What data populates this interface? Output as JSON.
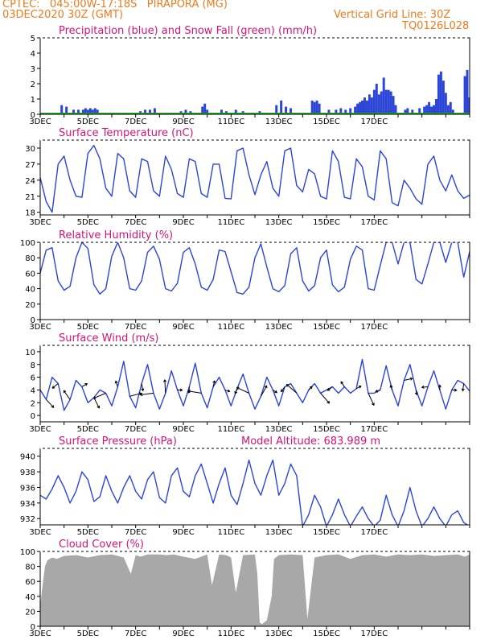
{
  "header": {
    "line1": "CPTEC:   045:00W-17:18S   PIRAPORA (MG)",
    "line2": "03DEC2020 30Z (GMT)",
    "grid_note": "Vertical Grid Line: 30Z",
    "code": "TQ0126L028"
  },
  "colors": {
    "header": "#e87c1e",
    "title": "#d0147a",
    "line": "#2b45d6",
    "snow": "#22aa22",
    "cloud": "#a8a8a8",
    "axis": "#000000"
  },
  "x_labels": [
    "3DEC",
    "5DEC",
    "7DEC",
    "9DEC",
    "11DEC",
    "13DEC",
    "15DEC",
    "17DEC"
  ],
  "chart_data": [
    {
      "type": "bar",
      "title": "Precipitation (blue) and Snow Fall (green) (mm/h)",
      "ylim": [
        0,
        5
      ],
      "yticks": [
        0,
        1,
        2,
        3,
        4,
        5
      ],
      "series": [
        {
          "name": "Precipitation",
          "x": [
            0.9,
            1.1,
            1.4,
            1.6,
            1.8,
            1.9,
            2.0,
            2.1,
            2.2,
            2.3,
            2.4,
            4.2,
            4.4,
            4.6,
            4.8,
            5.9,
            6.1,
            6.3,
            6.8,
            6.9,
            7.0,
            7.6,
            7.8,
            8.2,
            8.5,
            9.2,
            9.9,
            10.1,
            10.3,
            10.5,
            11.4,
            11.5,
            11.6,
            11.7,
            12.1,
            12.4,
            12.6,
            12.8,
            13.0,
            13.2,
            13.3,
            13.4,
            13.5,
            13.6,
            13.7,
            13.8,
            13.9,
            14.0,
            14.1,
            14.2,
            14.3,
            14.4,
            14.5,
            14.6,
            14.7,
            14.8,
            14.9,
            15.3,
            15.4,
            15.6,
            15.9,
            16.1,
            16.2,
            16.3,
            16.4,
            16.5,
            16.6,
            16.7,
            16.8,
            16.9,
            17.0,
            17.1,
            17.2,
            17.3,
            17.8,
            17.9,
            18.0
          ],
          "values": [
            0.6,
            0.5,
            0.3,
            0.3,
            0.3,
            0.4,
            0.3,
            0.4,
            0.3,
            0.4,
            0.3,
            0.2,
            0.3,
            0.3,
            0.4,
            0.2,
            0.3,
            0.2,
            0.5,
            0.7,
            0.3,
            0.3,
            0.2,
            0.3,
            0.2,
            0.2,
            0.6,
            0.9,
            0.5,
            0.4,
            0.9,
            0.8,
            0.9,
            0.7,
            0.3,
            0.3,
            0.4,
            0.3,
            0.4,
            0.5,
            0.7,
            0.8,
            0.9,
            1.1,
            0.9,
            1.3,
            1.1,
            1.6,
            2.0,
            1.3,
            1.5,
            2.4,
            1.6,
            1.6,
            1.5,
            1.2,
            0.6,
            0.3,
            0.4,
            0.3,
            0.4,
            0.5,
            0.6,
            0.8,
            0.5,
            0.6,
            1.0,
            2.6,
            2.8,
            2.2,
            1.4,
            0.6,
            0.8,
            0.3,
            2.5,
            2.9,
            1.1
          ]
        },
        {
          "name": "Snow Fall",
          "x": [
            0,
            18
          ],
          "values": [
            0,
            0
          ]
        }
      ]
    },
    {
      "type": "line",
      "title": "Surface Temperature (nC)",
      "ylim": [
        17.5,
        31.5
      ],
      "yticks": [
        18,
        21,
        24,
        27,
        30
      ],
      "x": [
        0,
        0.25,
        0.5,
        0.75,
        1,
        1.25,
        1.5,
        1.75,
        2,
        2.25,
        2.5,
        2.75,
        3,
        3.25,
        3.5,
        3.75,
        4,
        4.25,
        4.5,
        4.75,
        5,
        5.25,
        5.5,
        5.75,
        6,
        6.25,
        6.5,
        6.75,
        7,
        7.25,
        7.5,
        7.75,
        8,
        8.25,
        8.5,
        8.75,
        9,
        9.25,
        9.5,
        9.75,
        10,
        10.25,
        10.5,
        10.75,
        11,
        11.25,
        11.5,
        11.75,
        12,
        12.25,
        12.5,
        12.75,
        13,
        13.25,
        13.5,
        13.75,
        14,
        14.25,
        14.5,
        14.75,
        15,
        15.25,
        15.5,
        15.75,
        16,
        16.25,
        16.5,
        16.75,
        17,
        17.25,
        17.5,
        17.75,
        18
      ],
      "values": [
        24.5,
        20,
        18,
        27,
        28.5,
        24,
        21,
        20.8,
        29,
        30.5,
        28,
        22.5,
        21,
        29,
        28,
        22,
        20.8,
        28,
        27.5,
        22,
        21,
        28.5,
        26,
        21.5,
        20.8,
        28,
        27.5,
        21.5,
        20.8,
        27,
        27,
        20.6,
        20.5,
        29.5,
        30,
        25,
        21.3,
        25,
        27.5,
        22.5,
        21,
        29.5,
        30,
        23,
        21.8,
        26,
        25.2,
        21,
        20.5,
        29.5,
        27.5,
        20.8,
        20.5,
        28,
        26.5,
        21,
        20.3,
        29.5,
        28,
        19.8,
        19.2,
        24,
        22.5,
        20.5,
        19.5,
        27,
        28.5,
        24,
        22,
        25,
        22,
        20.6,
        21.2
      ]
    },
    {
      "type": "line",
      "title": "Relative Humidity (%)",
      "ylim": [
        0,
        100
      ],
      "yticks": [
        0,
        20,
        40,
        60,
        80,
        100
      ],
      "x": [
        0,
        0.25,
        0.5,
        0.75,
        1,
        1.25,
        1.5,
        1.75,
        2,
        2.25,
        2.5,
        2.75,
        3,
        3.25,
        3.5,
        3.75,
        4,
        4.25,
        4.5,
        4.75,
        5,
        5.25,
        5.5,
        5.75,
        6,
        6.25,
        6.5,
        6.75,
        7,
        7.25,
        7.5,
        7.75,
        8,
        8.25,
        8.5,
        8.75,
        9,
        9.25,
        9.5,
        9.75,
        10,
        10.25,
        10.5,
        10.75,
        11,
        11.25,
        11.5,
        11.75,
        12,
        12.25,
        12.5,
        12.75,
        13,
        13.25,
        13.5,
        13.75,
        14,
        14.25,
        14.5,
        14.75,
        15,
        15.25,
        15.5,
        15.75,
        16,
        16.25,
        16.5,
        16.75,
        17,
        17.25,
        17.5,
        17.75,
        18
      ],
      "values": [
        60,
        90,
        93,
        50,
        38,
        43,
        80,
        100,
        92,
        45,
        33,
        40,
        82,
        100,
        80,
        40,
        38,
        50,
        87,
        95,
        78,
        40,
        37,
        47,
        87,
        93,
        72,
        42,
        38,
        52,
        90,
        88,
        62,
        35,
        33,
        42,
        80,
        98,
        68,
        40,
        36,
        44,
        85,
        93,
        50,
        37,
        44,
        80,
        90,
        45,
        36,
        42,
        78,
        95,
        90,
        40,
        38,
        70,
        100,
        100,
        72,
        100,
        100,
        52,
        46,
        72,
        100,
        100,
        74,
        100,
        100,
        55,
        88
      ]
    },
    {
      "type": "line",
      "title": "Surface Wind (m/s)",
      "ylim": [
        -1,
        11
      ],
      "yticks": [
        0,
        2,
        4,
        6,
        8,
        10
      ],
      "x": [
        0,
        0.25,
        0.5,
        0.75,
        1,
        1.25,
        1.5,
        1.75,
        2,
        2.25,
        2.5,
        2.75,
        3,
        3.25,
        3.5,
        3.75,
        4,
        4.25,
        4.5,
        4.75,
        5,
        5.25,
        5.5,
        5.75,
        6,
        6.25,
        6.5,
        6.75,
        7,
        7.25,
        7.5,
        7.75,
        8,
        8.25,
        8.5,
        8.75,
        9,
        9.25,
        9.5,
        9.75,
        10,
        10.25,
        10.5,
        10.75,
        11,
        11.25,
        11.5,
        11.75,
        12,
        12.25,
        12.5,
        12.75,
        13,
        13.25,
        13.5,
        13.75,
        14,
        14.25,
        14.5,
        14.75,
        15,
        15.25,
        15.5,
        15.75,
        16,
        16.25,
        16.5,
        16.75,
        17,
        17.25,
        17.5,
        17.75,
        18
      ],
      "values": [
        4,
        2.5,
        6,
        5,
        0.8,
        2.5,
        5.5,
        4.5,
        2,
        2.8,
        4,
        3.5,
        1.5,
        4.5,
        8.5,
        3,
        1.2,
        5,
        8,
        3.5,
        1,
        3.5,
        7,
        4,
        1.5,
        4.5,
        8.2,
        3.5,
        1.2,
        4.5,
        6,
        4,
        1.5,
        4.2,
        6.5,
        3.5,
        1,
        3,
        6,
        4,
        1.5,
        4.5,
        5,
        3.5,
        2,
        4,
        5,
        3.5,
        4,
        4.5,
        3.5,
        4.5,
        3.5,
        4.2,
        8.8,
        3.5,
        3.5,
        4,
        7.8,
        4,
        1.5,
        5.5,
        8,
        4,
        1.5,
        4.5,
        7,
        4,
        1,
        4,
        5.5,
        5,
        3.8
      ]
    },
    {
      "type": "line",
      "title": "Surface Pressure (hPa)",
      "annotation": "Model Altitude: 683.989 m",
      "ylim": [
        931.2,
        941
      ],
      "yticks": [
        932,
        934,
        936,
        938,
        940
      ],
      "x": [
        0,
        0.25,
        0.5,
        0.75,
        1,
        1.25,
        1.5,
        1.75,
        2,
        2.25,
        2.5,
        2.75,
        3,
        3.25,
        3.5,
        3.75,
        4,
        4.25,
        4.5,
        4.75,
        5,
        5.25,
        5.5,
        5.75,
        6,
        6.25,
        6.5,
        6.75,
        7,
        7.25,
        7.5,
        7.75,
        8,
        8.25,
        8.5,
        8.75,
        9,
        9.25,
        9.5,
        9.75,
        10,
        10.25,
        10.5,
        10.75,
        11,
        11.25,
        11.5,
        11.75,
        12,
        12.25,
        12.5,
        12.75,
        13,
        13.25,
        13.5,
        13.75,
        14,
        14.25,
        14.5,
        14.75,
        15,
        15.25,
        15.5,
        15.75,
        16,
        16.25,
        16.5,
        16.75,
        17,
        17.25,
        17.5,
        17.75,
        18
      ],
      "values": [
        935,
        934.5,
        935.8,
        937.5,
        936,
        934,
        935.5,
        938,
        937,
        934.2,
        934.8,
        937.5,
        935.5,
        934,
        936,
        937.5,
        935.5,
        934.5,
        937,
        938,
        934.7,
        934,
        937.5,
        938.5,
        935.5,
        934.8,
        937.5,
        939,
        936.5,
        934,
        936.5,
        938.5,
        935,
        933.8,
        936.5,
        939.5,
        936.5,
        935,
        937.5,
        939.5,
        935,
        936.5,
        939,
        937.5,
        931,
        932.5,
        935,
        933.5,
        931,
        932.5,
        934.5,
        932.5,
        931,
        932.3,
        933.5,
        932,
        931,
        931.8,
        935,
        932.5,
        931,
        933,
        936,
        933,
        931,
        932,
        933.5,
        932,
        931,
        932.5,
        933,
        931.5,
        931
      ]
    },
    {
      "type": "area",
      "title": "Cloud Cover (%)",
      "ylim": [
        0,
        100
      ],
      "yticks": [
        0,
        20,
        40,
        60,
        80,
        100
      ],
      "x": [
        0,
        0.1,
        0.2,
        0.3,
        0.5,
        0.7,
        1,
        1.5,
        2,
        2.5,
        3,
        3.5,
        3.8,
        4,
        4.2,
        4.5,
        5,
        5.3,
        5.6,
        6,
        6.5,
        7,
        7.2,
        7.5,
        7.8,
        8,
        8.2,
        8.5,
        9,
        9.1,
        9.2,
        9.3,
        9.5,
        9.7,
        9.8,
        10,
        10.5,
        11,
        11.2,
        11.5,
        12,
        12.5,
        13,
        13.5,
        14,
        14.5,
        15,
        15.5,
        16,
        16.5,
        17,
        17.5,
        17.8,
        18
      ],
      "values": [
        28,
        55,
        80,
        88,
        92,
        90,
        94,
        95,
        92,
        95,
        96,
        92,
        70,
        95,
        93,
        96,
        96,
        95,
        96,
        93,
        90,
        96,
        55,
        96,
        95,
        92,
        45,
        95,
        96,
        70,
        5,
        3,
        8,
        40,
        90,
        95,
        96,
        95,
        10,
        92,
        95,
        96,
        90,
        95,
        96,
        93,
        96,
        95,
        96,
        94,
        95,
        96,
        93,
        96
      ]
    }
  ]
}
